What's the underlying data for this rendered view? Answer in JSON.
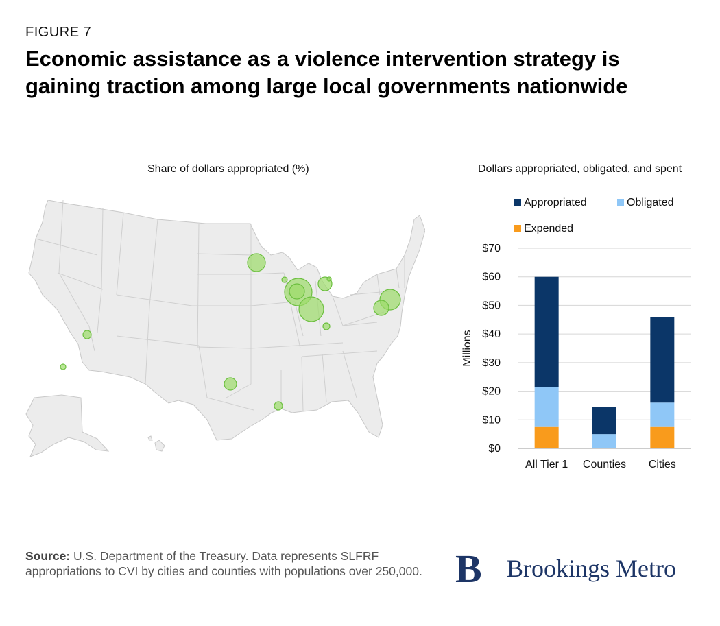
{
  "figure_label": "FIGURE 7",
  "title": "Economic assistance as a violence intervention strategy is gaining traction among large local governments nationwide",
  "map": {
    "subtitle": "Share of dollars appropriated (%)",
    "bubble_color": "#9ddc6a",
    "bubble_stroke": "#6cbf3f",
    "land_color": "#ececec"
  },
  "chart_data": [
    {
      "type": "bar",
      "stacked": true,
      "title": "Dollars appropriated, obligated, and spent",
      "ylabel": "Millions",
      "ylim": [
        0,
        70
      ],
      "y_ticks": [
        "$0",
        "$10",
        "$20",
        "$30",
        "$40",
        "$50",
        "$60",
        "$70"
      ],
      "categories": [
        "All Tier 1",
        "Counties",
        "Cities"
      ],
      "grid": true,
      "legend_position": "top",
      "series": [
        {
          "name": "Expended",
          "color": "#f99b1c",
          "values": [
            7.5,
            0,
            7.5
          ]
        },
        {
          "name": "Obligated",
          "color": "#8fc7f7",
          "values": [
            14,
            5,
            8.5
          ]
        },
        {
          "name": "Appropriated",
          "color": "#0b3668",
          "values": [
            38.5,
            9.5,
            30
          ]
        }
      ],
      "legend": [
        {
          "name": "Appropriated",
          "color": "#0b3668"
        },
        {
          "name": "Obligated",
          "color": "#8fc7f7"
        },
        {
          "name": "Expended",
          "color": "#f99b1c"
        }
      ]
    }
  ],
  "source": {
    "label": "Source:",
    "text": " U.S. Department of the Treasury. Data represents SLFRF appropriations to CVI by cities and counties with populations over 250,000."
  },
  "logo": {
    "mark": "B",
    "text": "Brookings Metro"
  }
}
